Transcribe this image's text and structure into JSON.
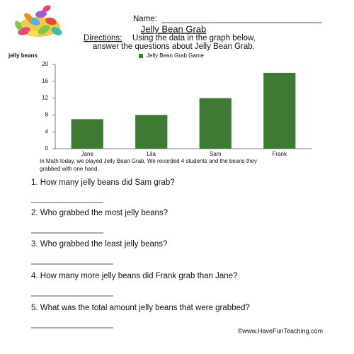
{
  "header": {
    "name_label": "Name:",
    "title": "Jelly Bean Grab",
    "directions_label": "Directions:",
    "directions": [
      "Using the data in the graph below,",
      "answer the questions about Jelly Bean Grab."
    ]
  },
  "chart_data": {
    "type": "bar",
    "y_label": "jelly beans",
    "categories": [
      "Jane",
      "Lila",
      "Sam",
      "Frank"
    ],
    "series": [
      {
        "name": "Jelly Bean Grab Game",
        "color": "#3f7a35",
        "values": [
          7,
          8,
          12,
          18
        ]
      }
    ],
    "ylim": [
      0,
      20
    ],
    "yticks": [
      0,
      4,
      8,
      12,
      16,
      20
    ],
    "grid": false
  },
  "caption": [
    "In Math today, we played Jelly Bean Grab.  We recorded 4 students and the beans they",
    "grabbed with one hand."
  ],
  "questions": [
    "1.  How many jelly beans did Sam grab?",
    "2.  Who grabbed the most jelly beans?",
    "3.  Who grabbed the least jelly beans?",
    "4.  How many more jelly beans did Frank grab than Jane?",
    "5.  What was the total amount jelly beans that were grabbed?"
  ],
  "footer": "©www.HaveFunTeaching.com"
}
